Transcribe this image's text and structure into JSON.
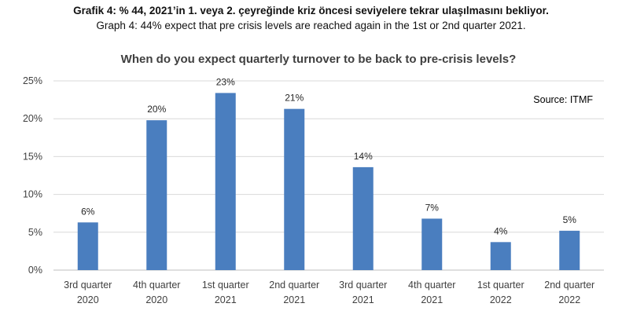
{
  "caption_tr": "Grafik 4: % 44, 2021’in 1. veya 2. çeyreğinde kriz öncesi seviyelere tekrar ulaşılmasını bekliyor.",
  "caption_en": "Graph 4: 44% expect that pre crisis levels are reached again in the 1st or 2nd quarter 2021.",
  "chart_data": {
    "type": "bar",
    "title": "When do you expect quarterly turnover to be back to pre-crisis levels?",
    "source": "Source: ITMF",
    "categories": [
      [
        "3rd quarter",
        "2020"
      ],
      [
        "4th quarter",
        "2020"
      ],
      [
        "1st quarter",
        "2021"
      ],
      [
        "2nd quarter",
        "2021"
      ],
      [
        "3rd quarter",
        "2021"
      ],
      [
        "4th quarter",
        "2021"
      ],
      [
        "1st quarter",
        "2022"
      ],
      [
        "2nd quarter",
        "2022"
      ]
    ],
    "values": [
      6.3,
      19.8,
      23.4,
      21.3,
      13.6,
      6.8,
      3.7,
      5.2
    ],
    "value_labels": [
      "6%",
      "20%",
      "23%",
      "21%",
      "14%",
      "7%",
      "4%",
      "5%"
    ],
    "yticks": [
      "0%",
      "5%",
      "10%",
      "15%",
      "20%",
      "25%"
    ],
    "ylim": [
      0,
      25
    ],
    "grid": true,
    "bar_color": "#4a7ebf"
  }
}
